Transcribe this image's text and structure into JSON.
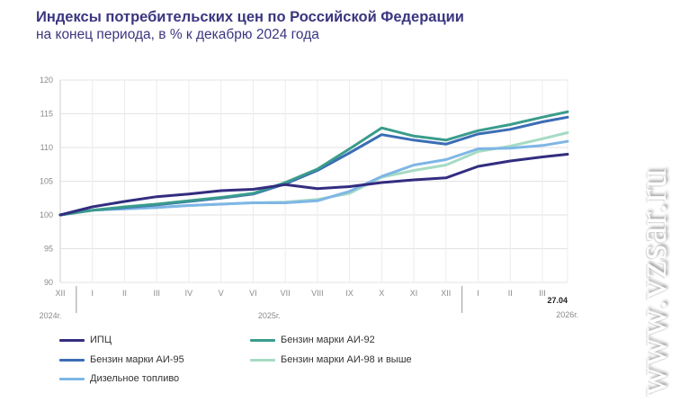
{
  "header": {
    "title": "Индексы потребительских цен по Российской Федерации",
    "subtitle": "на конец периода, в % к декабрю 2024 года"
  },
  "watermark": "www.vzsar.ru",
  "chart_data": {
    "type": "line",
    "title": "Индексы потребительских цен по Российской Федерации",
    "subtitle": "на конец периода, в % к декабрю 2024 года",
    "x": [
      "XII",
      "I",
      "II",
      "III",
      "IV",
      "V",
      "VI",
      "VII",
      "VIII",
      "IX",
      "X",
      "XI",
      "XII",
      "I",
      "II",
      "III",
      "27.04"
    ],
    "year_labels": [
      {
        "label": "2024г.",
        "at": 0
      },
      {
        "label": "2025г.",
        "at": 6.5
      },
      {
        "label": "2026г.",
        "at": 16
      }
    ],
    "year_separators": [
      0.5,
      12.5
    ],
    "ylim": [
      90,
      120
    ],
    "yticks": [
      90,
      95,
      100,
      105,
      110,
      115,
      120
    ],
    "grid": true,
    "legend_position": "bottom",
    "series": [
      {
        "name": "ИПЦ",
        "color": "#332d80",
        "values": [
          100,
          101.2,
          102.0,
          102.7,
          103.1,
          103.6,
          103.8,
          104.5,
          103.9,
          104.2,
          104.8,
          105.2,
          105.5,
          107.2,
          108.0,
          108.6,
          109.0
        ]
      },
      {
        "name": "Бензин марки АИ-92",
        "color": "#3a9c8c",
        "values": [
          100,
          100.7,
          101.2,
          101.6,
          102.1,
          102.6,
          103.2,
          104.8,
          106.8,
          109.8,
          112.9,
          111.7,
          111.1,
          112.5,
          113.4,
          114.5,
          115.3
        ]
      },
      {
        "name": "Бензин марки АИ-95",
        "color": "#3b6db5",
        "values": [
          100,
          100.7,
          101.1,
          101.5,
          102.0,
          102.5,
          103.1,
          104.6,
          106.6,
          109.2,
          111.9,
          111.1,
          110.5,
          112.0,
          112.7,
          113.8,
          114.5
        ]
      },
      {
        "name": "Бензин марки АИ-98 и выше",
        "color": "#a6dbc3",
        "values": [
          100,
          100.7,
          100.9,
          101.1,
          101.4,
          101.6,
          101.8,
          101.9,
          102.3,
          103.2,
          105.6,
          106.6,
          107.4,
          109.4,
          110.2,
          111.3,
          112.2
        ]
      },
      {
        "name": "Дизельное топливо",
        "color": "#7eb6e6",
        "values": [
          100,
          100.7,
          100.9,
          101.1,
          101.4,
          101.6,
          101.8,
          101.8,
          102.1,
          103.5,
          105.7,
          107.4,
          108.2,
          109.8,
          109.9,
          110.3,
          110.9
        ]
      }
    ]
  }
}
